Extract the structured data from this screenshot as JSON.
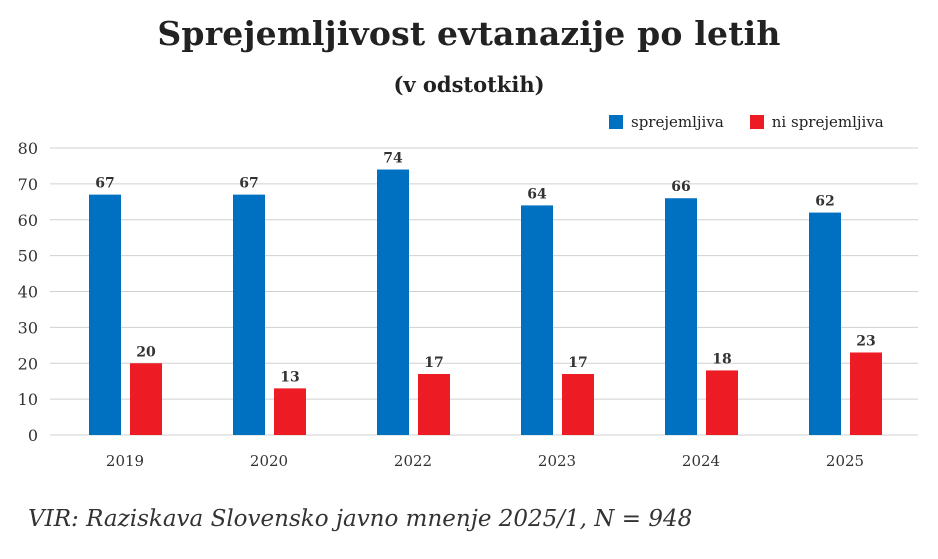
{
  "chart_data": {
    "type": "bar",
    "title": "Sprejemljivost evtanazije po letih",
    "subtitle": "(v odstotkih)",
    "categories": [
      "2019",
      "2020",
      "2022",
      "2023",
      "2024",
      "2025"
    ],
    "series": [
      {
        "name": "sprejemljiva",
        "color": "#0070c0",
        "values": [
          67,
          67,
          74,
          64,
          66,
          62
        ]
      },
      {
        "name": "ni sprejemljiva",
        "color": "#ed1c24",
        "values": [
          20,
          13,
          17,
          17,
          18,
          23
        ]
      }
    ],
    "ylim": [
      0,
      80
    ],
    "yticks": [
      0,
      10,
      20,
      30,
      40,
      50,
      60,
      70,
      80
    ],
    "grid": true,
    "legend": "top-right",
    "source": "VIR: Raziskava Slovensko javno mnenje 2025/1, N = 948"
  }
}
